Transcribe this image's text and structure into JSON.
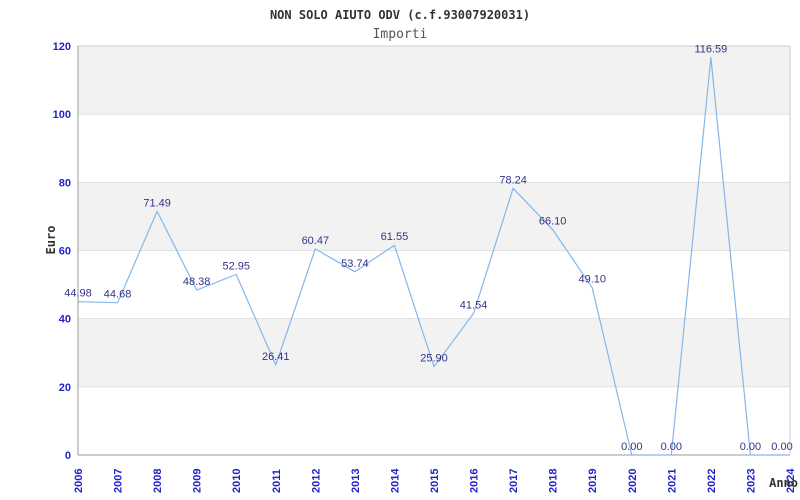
{
  "chart_data": {
    "type": "line",
    "title": "NON SOLO AIUTO ODV (c.f.93007920031)",
    "subtitle": "Importi",
    "xlabel": "Anno",
    "ylabel": "Euro",
    "x": [
      2006,
      2007,
      2008,
      2009,
      2010,
      2011,
      2012,
      2013,
      2014,
      2015,
      2016,
      2017,
      2018,
      2019,
      2020,
      2021,
      2022,
      2023,
      2024
    ],
    "series": [
      {
        "name": "Importi",
        "values": [
          44.98,
          44.68,
          71.49,
          48.38,
          52.95,
          26.41,
          60.47,
          53.74,
          61.55,
          25.9,
          41.54,
          78.24,
          66.1,
          49.1,
          0.0,
          0.0,
          116.59,
          0.0,
          0.0
        ]
      }
    ],
    "ylim": [
      0,
      120
    ],
    "ytick_step": 20,
    "grid": "alternating-horizontal-bands",
    "legend": "none",
    "value_label_decimals": 2,
    "colors": {
      "line": "#85b7ea",
      "tick_label": "#2222cc",
      "value_label": "#333388",
      "band": "#f2f2f2",
      "gridline": "#e0e0e0",
      "axis": "#999999",
      "frame": "#cccccc",
      "title": "#333333",
      "subtitle": "#555555",
      "background": "#ffffff"
    }
  }
}
